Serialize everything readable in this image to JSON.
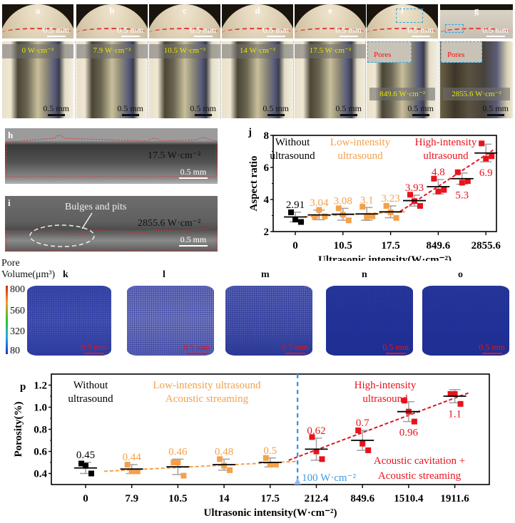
{
  "figure": {
    "cross_sections": [
      {
        "letter": "a",
        "scale": "0.5 mm"
      },
      {
        "letter": "b",
        "scale": "0.5 mm"
      },
      {
        "letter": "c",
        "scale": "0.5 mm"
      },
      {
        "letter": "d",
        "scale": "0.5 mm"
      },
      {
        "letter": "e",
        "scale": "0.5 mm"
      },
      {
        "letter": "f",
        "scale": "0.5 mm"
      },
      {
        "letter": "g",
        "scale": "0.5 mm"
      }
    ],
    "top_views": [
      {
        "intensity": "0 W·cm⁻²",
        "scale": "0.5 mm"
      },
      {
        "intensity": "7.9 W·cm⁻²",
        "scale": "0.5 mm"
      },
      {
        "intensity": "10.5 W·cm⁻²",
        "scale": "0.5 mm"
      },
      {
        "intensity": "14 W·cm⁻²",
        "scale": "0.5 mm"
      },
      {
        "intensity": "17.5 W·cm⁻²",
        "scale": "0.5 mm"
      },
      {
        "intensity": "849.6 W·cm⁻²",
        "scale": "0.5 mm"
      },
      {
        "intensity": "2855.6 W·cm⁻²",
        "scale": "0.5 mm"
      }
    ],
    "pores_label": "Pores",
    "panel_h": {
      "letter": "h",
      "intensity": "17.5 W·cm⁻²",
      "scale": "0.5 mm"
    },
    "panel_i": {
      "letter": "i",
      "intensity": "2855.6 W·cm⁻²",
      "scale": "0.5 mm",
      "annotation": "Bulges and pits"
    },
    "ct": {
      "colorbar_title_1": "Pore",
      "colorbar_title_2": "Volume(μm³)",
      "colorbar_ticks": [
        "800",
        "560",
        "320",
        "80"
      ],
      "colorbar_colors": [
        "#e01e1e",
        "#30c030",
        "#1e30d0"
      ],
      "panels": [
        {
          "letter": "k",
          "scale": "0.5 mm"
        },
        {
          "letter": "l",
          "scale": "0.5 mm"
        },
        {
          "letter": "m",
          "scale": "0.5 mm"
        },
        {
          "letter": "n",
          "scale": "0.5 mm"
        },
        {
          "letter": "o",
          "scale": "0.5 mm"
        }
      ]
    }
  },
  "chart_data": [
    {
      "type": "scatter",
      "panel": "j",
      "title": "",
      "xlabel": "Ultrasonic intensity(W·cm⁻²)",
      "ylabel": "Aspect ratio",
      "ylim": [
        2,
        8
      ],
      "yticks": [
        "2",
        "4",
        "6",
        "8"
      ],
      "categories": [
        "0",
        "7.9",
        "10.5",
        "14",
        "17.5",
        "212.4",
        "849.6",
        "1510.4",
        "2855.6"
      ],
      "xtick_labels_shown": [
        "0",
        "10.5",
        "17.5",
        "849.6",
        "2855.6"
      ],
      "means": [
        2.91,
        3.04,
        3.08,
        3.1,
        3.23,
        3.93,
        4.8,
        5.3,
        6.9
      ],
      "mean_labels": [
        "2.91",
        "3.04",
        "3.08",
        "3.1",
        "3.23",
        "3.93",
        "4.8",
        "5.3",
        "6.9"
      ],
      "groups": [
        "none",
        "low",
        "low",
        "low",
        "low",
        "high",
        "high",
        "high",
        "high"
      ],
      "points": [
        [
          3.2,
          2.75,
          2.6
        ],
        [
          2.9,
          3.35,
          2.95
        ],
        [
          3.45,
          3.05,
          2.7
        ],
        [
          3.55,
          2.9,
          2.95
        ],
        [
          3.6,
          3.2,
          2.85
        ],
        [
          4.3,
          3.9,
          3.6
        ],
        [
          5.3,
          4.5,
          4.6
        ],
        [
          5.7,
          5.05,
          5.15
        ],
        [
          7.5,
          6.55,
          6.7
        ]
      ],
      "error": [
        0.3,
        0.3,
        0.37,
        0.4,
        0.37,
        0.34,
        0.45,
        0.35,
        0.55
      ],
      "group_labels": [
        {
          "group": "none",
          "line1": "Without",
          "line2": "ultrasound"
        },
        {
          "group": "low",
          "line1": "Low-intensity",
          "line2": "ultrasound"
        },
        {
          "group": "high",
          "line1": "High-intensity",
          "line2": "ultrasound"
        }
      ],
      "colors": {
        "none": "#000000",
        "low": "#f5a04a",
        "high": "#e8131c",
        "err": "#a0a0a0"
      }
    },
    {
      "type": "scatter",
      "panel": "p",
      "title": "",
      "xlabel": "Ultrasonic intensity(W·cm⁻²)",
      "ylabel": "Porosity(%)",
      "ylim": [
        0.3,
        1.3
      ],
      "yticks": [
        "0.4",
        "0.6",
        "0.8",
        "1.0",
        "1.2"
      ],
      "categories": [
        "0",
        "7.9",
        "10.5",
        "14",
        "17.5",
        "212.4",
        "849.6",
        "1510.4",
        "1911.6"
      ],
      "means": [
        0.45,
        0.44,
        0.46,
        0.48,
        0.5,
        0.62,
        0.7,
        0.96,
        1.1
      ],
      "mean_labels": [
        "0.45",
        "0.44",
        "0.46",
        "0.48",
        "0.5",
        "0.62",
        "0.7",
        "0.96",
        "1.1"
      ],
      "groups": [
        "none",
        "low",
        "low",
        "low",
        "low",
        "high",
        "high",
        "high",
        "high"
      ],
      "points": [
        [
          0.49,
          0.47,
          0.4
        ],
        [
          0.48,
          0.42,
          0.42
        ],
        [
          0.5,
          0.5,
          0.38
        ],
        [
          0.53,
          0.47,
          0.43
        ],
        [
          0.54,
          0.48,
          0.48
        ],
        [
          0.73,
          0.6,
          0.53
        ],
        [
          0.79,
          0.67,
          0.61
        ],
        [
          1.06,
          0.96,
          0.87
        ],
        [
          1.12,
          1.12,
          1.03
        ]
      ],
      "error": [
        0.05,
        0.04,
        0.07,
        0.05,
        0.04,
        0.1,
        0.09,
        0.09,
        0.06
      ],
      "group_labels": [
        {
          "group": "none",
          "line1": "Without",
          "line2": "ultrasound"
        },
        {
          "group": "low",
          "line1": "Low-intensity ultrasound",
          "line2": "Acoustic streaming"
        },
        {
          "group": "high",
          "line1": "High-intensity",
          "line2": "ultrasound"
        }
      ],
      "mechanism_label_1": "Acoustic cavitation +",
      "mechanism_label_2": "Acoustic streaming",
      "threshold_label": "100 W·cm⁻²",
      "threshold_color": "#3d9be9",
      "colors": {
        "none": "#000000",
        "low": "#f5a04a",
        "high": "#e8131c",
        "err": "#a0a0a0"
      }
    }
  ]
}
